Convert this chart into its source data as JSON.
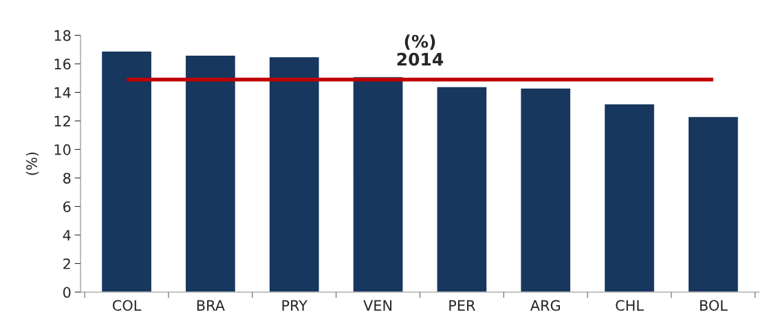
{
  "chart_data": {
    "type": "bar",
    "title": "(%)\n2014",
    "ylabel": "(%)",
    "categories": [
      "COL",
      "BRA",
      "PRY",
      "VEN",
      "PER",
      "ARG",
      "CHL",
      "BOL"
    ],
    "values": [
      16.9,
      16.6,
      16.5,
      15.1,
      14.4,
      14.3,
      13.2,
      12.3
    ],
    "color": "#17375e",
    "ylim": [
      0,
      18
    ],
    "yticks": [
      0,
      2,
      4,
      6,
      8,
      10,
      12,
      14,
      16,
      18
    ],
    "ref_lines": [
      {
        "axis": "y",
        "value": 14.9,
        "color": "#c00000",
        "line_style": "solid"
      }
    ],
    "grid": false,
    "legend": false
  }
}
